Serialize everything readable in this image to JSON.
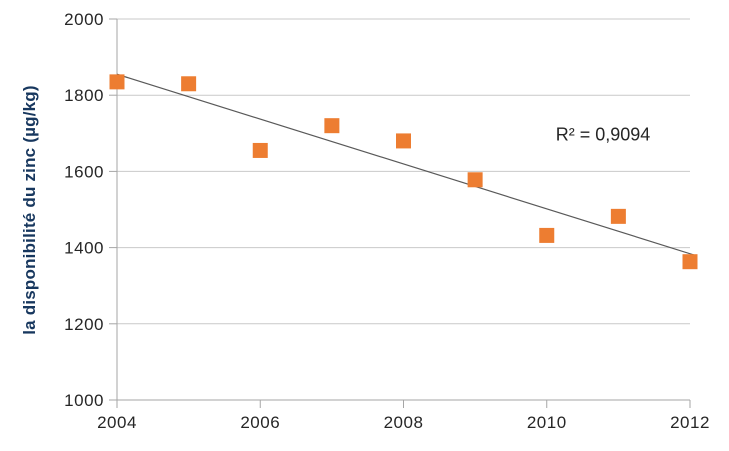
{
  "chart_data": {
    "type": "scatter",
    "title": "",
    "xlabel": "",
    "ylabel": "la disponibilité du zinc (µg/kg)",
    "x": [
      2004,
      2005,
      2006,
      2007,
      2008,
      2009,
      2010,
      2011,
      2012
    ],
    "values": [
      1835,
      1830,
      1655,
      1720,
      1680,
      1578,
      1432,
      1482,
      1363
    ],
    "series_name": "disponibilité du zinc",
    "xlim": [
      2004,
      2012
    ],
    "ylim": [
      1000,
      2000
    ],
    "xticks": [
      2004,
      2006,
      2008,
      2010,
      2012
    ],
    "yticks": [
      1000,
      1200,
      1400,
      1600,
      1800,
      2000
    ],
    "grid": true,
    "legend": false,
    "marker": "square",
    "trendline": {
      "type": "linear",
      "start_year": 2004,
      "start_value": 1855,
      "end_year": 2012,
      "end_value": 1384
    },
    "annotation": {
      "text": "R² = 0,9094"
    },
    "colors": {
      "marker": "#ED7D31",
      "trendline": "#595959",
      "gridline": "#C9C9C9",
      "axis": "#A6A6A6",
      "tick_label": "#262626",
      "ylabel": "#17375E",
      "annotation": "#262626",
      "background": "#FFFFFF"
    }
  }
}
